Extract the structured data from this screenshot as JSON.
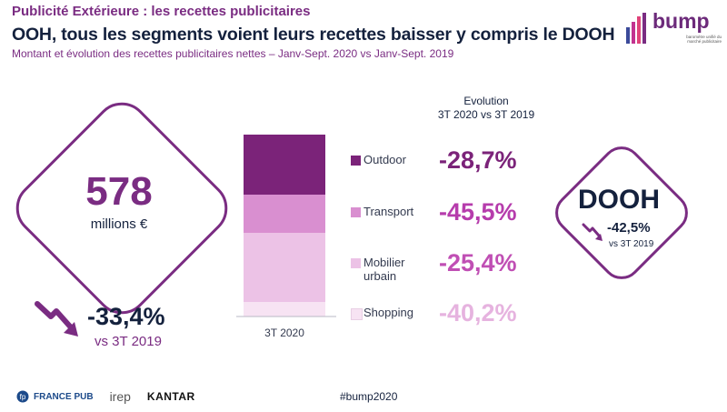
{
  "section_title": "Publicité Extérieure : les recettes publicitaires",
  "headline": "OOH, tous les segments voient leurs recettes baisser y compris le DOOH",
  "subtitle": "Montant et évolution des recettes publicitaires nettes – Janv-Sept. 2020 vs Janv-Sept. 2019",
  "logo": {
    "word": "bump",
    "tagline": "baromètre unifié du marché publicitaire"
  },
  "total": {
    "value": "578",
    "unit": "millions €",
    "change": "-33,4%",
    "vs": "vs 3T 2019"
  },
  "evolution_header": {
    "line1": "Evolution",
    "line2": "3T 2020 vs 3T 2019"
  },
  "dooh": {
    "title": "DOOH",
    "change": "-42,5%",
    "vs": "vs 3T 2019"
  },
  "footer": {
    "logo1": "FRANCE PUB",
    "logo2": "irep",
    "logo3": "KANTAR",
    "hashtag": "#bump2020"
  },
  "chart_data": {
    "type": "bar",
    "stacked": true,
    "categories": [
      "3T 2020"
    ],
    "series": [
      {
        "name": "Outdoor",
        "share": 0.33,
        "evolution": "-28,7%",
        "color": "#7b2379"
      },
      {
        "name": "Transport",
        "share": 0.21,
        "evolution": "-45,5%",
        "color": "#d98fd0"
      },
      {
        "name": "Mobilier urbain",
        "share": 0.38,
        "evolution": "-25,4%",
        "color": "#ecc2e6"
      },
      {
        "name": "Shopping",
        "share": 0.08,
        "evolution": "-40,2%",
        "color": "#f7e3f3"
      }
    ],
    "value_colors": [
      "#7b2379",
      "#b63cac",
      "#c04fb4",
      "#e6b3df"
    ]
  }
}
